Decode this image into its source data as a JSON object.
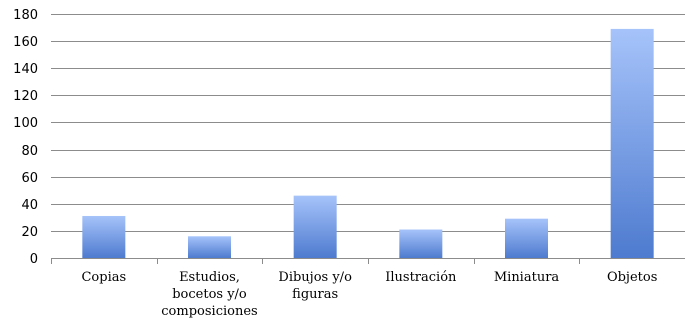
{
  "chart_data": {
    "type": "bar",
    "categories": [
      [
        "Copias"
      ],
      [
        "Estudios,",
        "bocetos y/o",
        "composiciones"
      ],
      [
        "Dibujos y/o",
        "figuras"
      ],
      [
        "Ilustración"
      ],
      [
        "Miniatura"
      ],
      [
        "Objetos"
      ]
    ],
    "values": [
      31,
      16,
      46,
      21,
      29,
      169
    ],
    "ylim": [
      0,
      180
    ],
    "yticks": [
      0,
      20,
      40,
      60,
      80,
      100,
      120,
      140,
      160,
      180
    ],
    "grid": true,
    "legend": "none",
    "title": "",
    "xlabel": "",
    "ylabel": "",
    "colors": {
      "bar_top": "#a6c3fa",
      "bar_bottom": "#4e7bcf",
      "grid": "#8c8c8c"
    }
  }
}
